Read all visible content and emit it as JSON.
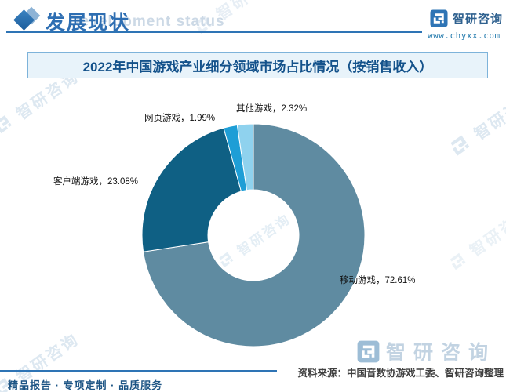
{
  "header": {
    "section_title": "发展现状",
    "section_subtitle_en": "Development status",
    "brand_name": "智研咨询",
    "brand_url": "www.chyxx.com"
  },
  "chart": {
    "title": "2022年中国游戏产业细分领域市场占比情况（按销售收入）",
    "labels": {
      "mobile": "移动游戏，72.61%",
      "client": "客户端游戏，23.08%",
      "web": "网页游戏，1.99%",
      "other": "其他游戏，2.32%"
    }
  },
  "chart_data": {
    "type": "pie",
    "subtype": "donut",
    "title": "2022年中国游戏产业细分领域市场占比情况（按销售收入）",
    "categories": [
      "移动游戏",
      "客户端游戏",
      "网页游戏",
      "其他游戏"
    ],
    "values": [
      72.61,
      23.08,
      1.99,
      2.32
    ],
    "unit": "%",
    "colors": [
      "#5f8ba1",
      "#0f6084",
      "#1e9ed6",
      "#8fd2ee"
    ],
    "start_angle_deg": 0,
    "direction": "clockwise",
    "inner_radius_ratio": 0.41,
    "legend": "none"
  },
  "watermark": {
    "brand": "智研咨询"
  },
  "footer": {
    "watermark_brand": "智研咨询",
    "source": "资料来源：中国音数协游戏工委、智研咨询整理",
    "services": "精品报告 · 专项定制 · 品质服务"
  }
}
